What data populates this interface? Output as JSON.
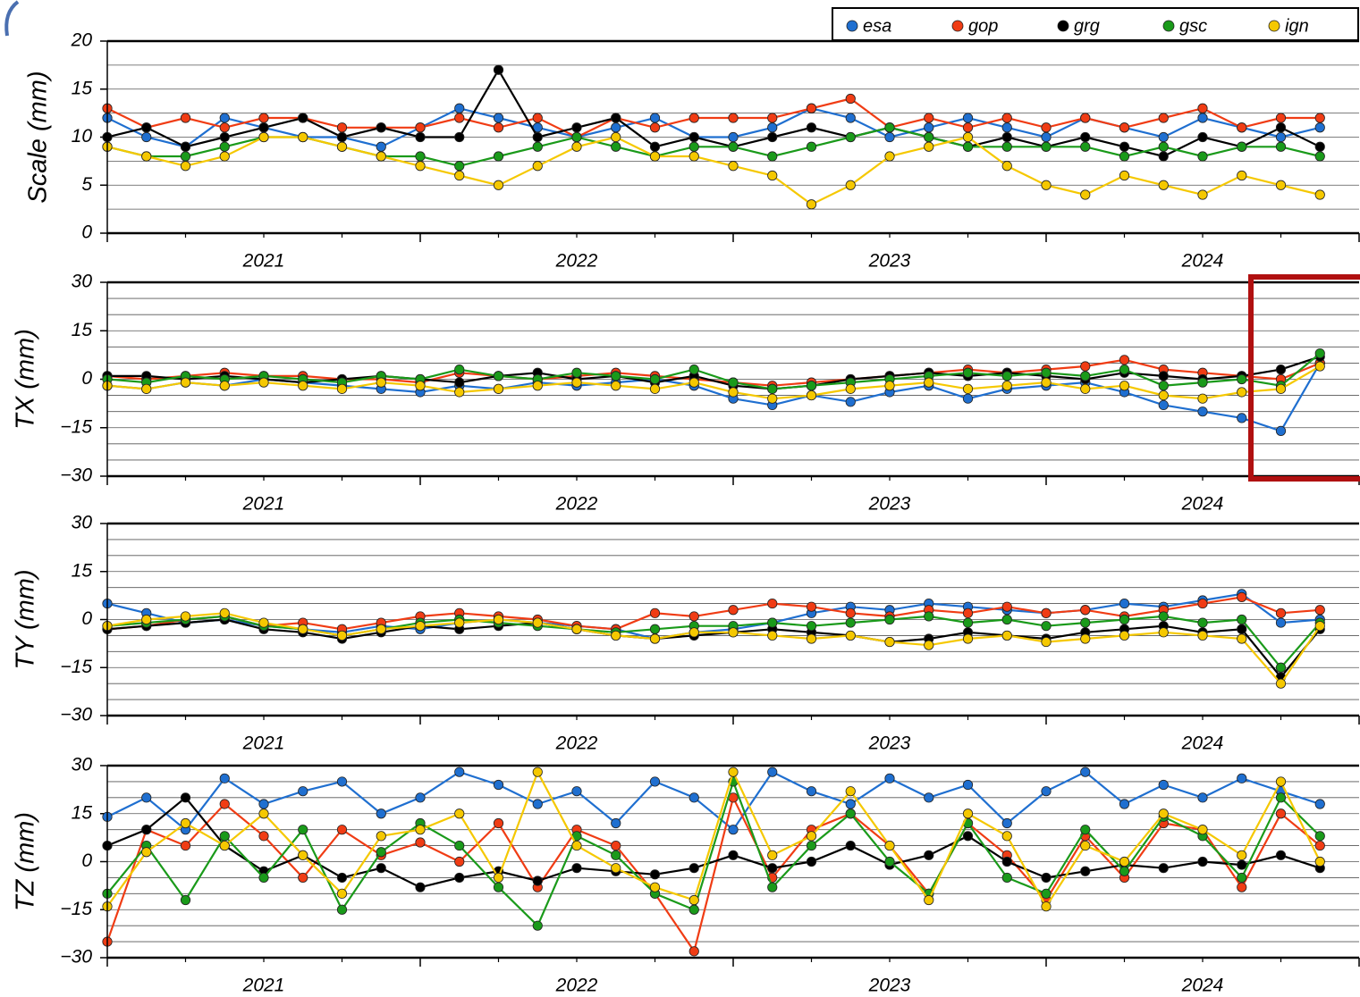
{
  "chart_data": [
    {
      "type": "line",
      "ylabel": "Scale (mm)",
      "legend": "top-right",
      "x": [
        2021,
        2021.125,
        2021.25,
        2021.375,
        2021.5,
        2021.625,
        2021.75,
        2021.875,
        2022,
        2022.125,
        2022.25,
        2022.375,
        2022.5,
        2022.625,
        2022.75,
        2022.875,
        2023,
        2023.125,
        2023.25,
        2023.375,
        2023.5,
        2023.625,
        2023.75,
        2023.875,
        2024,
        2024.125,
        2024.25,
        2024.375,
        2024.5,
        2024.625,
        2024.75,
        2024.875
      ],
      "xlim": [
        2021,
        2025
      ],
      "xticks": [
        {
          "value": 2021.5,
          "label": "2021"
        },
        {
          "value": 2022.5,
          "label": "2022"
        },
        {
          "value": 2023.5,
          "label": "2023"
        },
        {
          "value": 2024.5,
          "label": "2024"
        }
      ],
      "x_major_ticks": [
        2021,
        2022,
        2023,
        2024,
        2025
      ],
      "x_minor_ticks": [
        2021.25,
        2021.5,
        2021.75,
        2022.25,
        2022.5,
        2022.75,
        2023.25,
        2023.5,
        2023.75,
        2024.25,
        2024.5,
        2024.75
      ],
      "ylim": [
        0,
        20
      ],
      "yticks": [
        0,
        5,
        10,
        15,
        20
      ],
      "ygrid": [
        2.5,
        5,
        7.5,
        10,
        12.5,
        15,
        17.5
      ],
      "series": [
        {
          "name": "esa",
          "color": "#1f6fd0",
          "values": [
            12,
            10,
            9,
            12,
            11,
            10,
            10,
            9,
            11,
            13,
            12,
            11,
            10,
            11,
            12,
            10,
            10,
            11,
            13,
            12,
            10,
            11,
            12,
            11,
            10,
            12,
            11,
            10,
            12,
            11,
            10,
            11
          ]
        },
        {
          "name": "gop",
          "color": "#f03c14",
          "values": [
            13,
            11,
            12,
            11,
            12,
            12,
            11,
            11,
            11,
            12,
            11,
            12,
            10,
            12,
            11,
            12,
            12,
            12,
            13,
            14,
            11,
            12,
            11,
            12,
            11,
            12,
            11,
            12,
            13,
            11,
            12,
            12
          ]
        },
        {
          "name": "grg",
          "color": "#000000",
          "values": [
            10,
            11,
            9,
            10,
            11,
            12,
            10,
            11,
            10,
            10,
            17,
            10,
            11,
            12,
            9,
            10,
            9,
            10,
            11,
            10,
            11,
            10,
            9,
            10,
            9,
            10,
            9,
            8,
            10,
            9,
            11,
            9
          ]
        },
        {
          "name": "gsc",
          "color": "#1a9a1a",
          "values": [
            9,
            8,
            8,
            9,
            10,
            10,
            9,
            8,
            8,
            7,
            8,
            9,
            10,
            9,
            8,
            9,
            9,
            8,
            9,
            10,
            11,
            10,
            9,
            9,
            9,
            9,
            8,
            9,
            8,
            9,
            9,
            8
          ]
        },
        {
          "name": "ign",
          "color": "#f5c800",
          "values": [
            9,
            8,
            7,
            8,
            10,
            10,
            9,
            8,
            7,
            6,
            5,
            7,
            9,
            10,
            8,
            8,
            7,
            6,
            3,
            5,
            8,
            9,
            10,
            7,
            5,
            4,
            6,
            5,
            4,
            6,
            5,
            4
          ]
        }
      ]
    },
    {
      "type": "line",
      "ylabel": "TX (mm)",
      "x": [
        2021,
        2021.125,
        2021.25,
        2021.375,
        2021.5,
        2021.625,
        2021.75,
        2021.875,
        2022,
        2022.125,
        2022.25,
        2022.375,
        2022.5,
        2022.625,
        2022.75,
        2022.875,
        2023,
        2023.125,
        2023.25,
        2023.375,
        2023.5,
        2023.625,
        2023.75,
        2023.875,
        2024,
        2024.125,
        2024.25,
        2024.375,
        2024.5,
        2024.625,
        2024.75,
        2024.875
      ],
      "xlim": [
        2021,
        2025
      ],
      "xticks": [
        {
          "value": 2021.5,
          "label": "2021"
        },
        {
          "value": 2022.5,
          "label": "2022"
        },
        {
          "value": 2023.5,
          "label": "2023"
        },
        {
          "value": 2024.5,
          "label": "2024"
        }
      ],
      "x_major_ticks": [
        2021,
        2022,
        2023,
        2024,
        2025
      ],
      "x_minor_ticks": [
        2021.25,
        2021.5,
        2021.75,
        2022.25,
        2022.5,
        2022.75,
        2023.25,
        2023.5,
        2023.75,
        2024.25,
        2024.5,
        2024.75
      ],
      "ylim": [
        -30,
        30
      ],
      "yticks": [
        {
          "value": -30,
          "label": "−30"
        },
        {
          "value": -15,
          "label": "−15"
        },
        0,
        15,
        30
      ],
      "ygrid": [
        -25,
        -20,
        -15,
        -10,
        -5,
        0,
        5,
        10,
        15,
        20,
        25
      ],
      "series": [
        {
          "name": "esa",
          "color": "#1f6fd0",
          "values": [
            -2,
            -3,
            -1,
            -2,
            0,
            -1,
            -2,
            -3,
            -4,
            -2,
            -3,
            -1,
            -2,
            -1,
            0,
            -2,
            -6,
            -8,
            -5,
            -7,
            -4,
            -2,
            -6,
            -3,
            -2,
            -1,
            -4,
            -8,
            -10,
            -12,
            -16,
            5
          ]
        },
        {
          "name": "gop",
          "color": "#f03c14",
          "values": [
            1,
            0,
            1,
            2,
            1,
            1,
            0,
            0,
            -1,
            2,
            1,
            0,
            1,
            2,
            1,
            0,
            -1,
            -2,
            -1,
            0,
            1,
            2,
            3,
            2,
            3,
            4,
            6,
            3,
            2,
            1,
            0,
            5
          ]
        },
        {
          "name": "grg",
          "color": "#000000",
          "values": [
            1,
            1,
            0,
            1,
            0,
            -1,
            0,
            1,
            0,
            -1,
            1,
            2,
            0,
            1,
            -1,
            1,
            -2,
            -3,
            -2,
            0,
            1,
            2,
            1,
            2,
            1,
            0,
            2,
            1,
            0,
            1,
            3,
            7
          ]
        },
        {
          "name": "gsc",
          "color": "#1a9a1a",
          "values": [
            0,
            -1,
            1,
            0,
            1,
            0,
            -1,
            1,
            0,
            3,
            1,
            0,
            2,
            1,
            0,
            3,
            -1,
            -3,
            -2,
            -1,
            0,
            1,
            2,
            1,
            2,
            1,
            3,
            -2,
            -1,
            0,
            -2,
            8
          ]
        },
        {
          "name": "ign",
          "color": "#f5c800",
          "values": [
            -2,
            -3,
            -1,
            -2,
            -1,
            -2,
            -3,
            -1,
            -2,
            -4,
            -3,
            -2,
            -1,
            -2,
            -3,
            -1,
            -4,
            -6,
            -5,
            -3,
            -2,
            -1,
            -3,
            -2,
            -1,
            -3,
            -2,
            -5,
            -6,
            -4,
            -3,
            4
          ]
        }
      ]
    },
    {
      "type": "line",
      "ylabel": "TY (mm)",
      "x": [
        2021,
        2021.125,
        2021.25,
        2021.375,
        2021.5,
        2021.625,
        2021.75,
        2021.875,
        2022,
        2022.125,
        2022.25,
        2022.375,
        2022.5,
        2022.625,
        2022.75,
        2022.875,
        2023,
        2023.125,
        2023.25,
        2023.375,
        2023.5,
        2023.625,
        2023.75,
        2023.875,
        2024,
        2024.125,
        2024.25,
        2024.375,
        2024.5,
        2024.625,
        2024.75,
        2024.875
      ],
      "xlim": [
        2021,
        2025
      ],
      "xticks": [
        {
          "value": 2021.5,
          "label": "2021"
        },
        {
          "value": 2022.5,
          "label": "2022"
        },
        {
          "value": 2023.5,
          "label": "2023"
        },
        {
          "value": 2024.5,
          "label": "2024"
        }
      ],
      "x_major_ticks": [
        2021,
        2022,
        2023,
        2024,
        2025
      ],
      "x_minor_ticks": [
        2021.25,
        2021.5,
        2021.75,
        2022.25,
        2022.5,
        2022.75,
        2023.25,
        2023.5,
        2023.75,
        2024.25,
        2024.5,
        2024.75
      ],
      "ylim": [
        -30,
        30
      ],
      "yticks": [
        {
          "value": -30,
          "label": "−30"
        },
        {
          "value": -15,
          "label": "−15"
        },
        0,
        15,
        30
      ],
      "ygrid": [
        -25,
        -20,
        -15,
        -10,
        -5,
        0,
        5,
        10,
        15,
        20,
        25
      ],
      "series": [
        {
          "name": "esa",
          "color": "#1f6fd0",
          "values": [
            5,
            2,
            -1,
            0,
            -2,
            -3,
            -4,
            -2,
            -3,
            -1,
            0,
            -1,
            -2,
            -3,
            -6,
            -4,
            -3,
            -1,
            2,
            4,
            3,
            5,
            4,
            3,
            2,
            3,
            5,
            4,
            6,
            8,
            -1,
            0
          ]
        },
        {
          "name": "gop",
          "color": "#f03c14",
          "values": [
            -3,
            -2,
            0,
            1,
            -2,
            -1,
            -3,
            -1,
            1,
            2,
            1,
            0,
            -2,
            -3,
            2,
            1,
            3,
            5,
            4,
            2,
            1,
            3,
            2,
            4,
            2,
            3,
            1,
            3,
            5,
            7,
            2,
            3
          ]
        },
        {
          "name": "grg",
          "color": "#000000",
          "values": [
            -3,
            -2,
            -1,
            0,
            -3,
            -4,
            -6,
            -4,
            -2,
            -3,
            -2,
            -1,
            -3,
            -5,
            -6,
            -5,
            -4,
            -3,
            -4,
            -5,
            -7,
            -6,
            -4,
            -5,
            -6,
            -4,
            -3,
            -2,
            -4,
            -3,
            -18,
            -3
          ]
        },
        {
          "name": "gsc",
          "color": "#1a9a1a",
          "values": [
            -2,
            -1,
            0,
            1,
            -2,
            -3,
            -5,
            -3,
            -1,
            0,
            -1,
            -2,
            -3,
            -4,
            -3,
            -2,
            -2,
            -1,
            -2,
            -1,
            0,
            1,
            -1,
            0,
            -2,
            -1,
            0,
            1,
            -1,
            0,
            -15,
            -1
          ]
        },
        {
          "name": "ign",
          "color": "#f5c800",
          "values": [
            -2,
            0,
            1,
            2,
            -1,
            -3,
            -5,
            -3,
            -2,
            -1,
            0,
            -1,
            -3,
            -5,
            -6,
            -4,
            -4,
            -5,
            -6,
            -5,
            -7,
            -8,
            -6,
            -5,
            -7,
            -6,
            -5,
            -4,
            -5,
            -6,
            -20,
            -2
          ]
        }
      ]
    },
    {
      "type": "line",
      "ylabel": "TZ (mm)",
      "x": [
        2021,
        2021.125,
        2021.25,
        2021.375,
        2021.5,
        2021.625,
        2021.75,
        2021.875,
        2022,
        2022.125,
        2022.25,
        2022.375,
        2022.5,
        2022.625,
        2022.75,
        2022.875,
        2023,
        2023.125,
        2023.25,
        2023.375,
        2023.5,
        2023.625,
        2023.75,
        2023.875,
        2024,
        2024.125,
        2024.25,
        2024.375,
        2024.5,
        2024.625,
        2024.75,
        2024.875
      ],
      "xlim": [
        2021,
        2025
      ],
      "xticks": [
        {
          "value": 2021.5,
          "label": "2021"
        },
        {
          "value": 2022.5,
          "label": "2022"
        },
        {
          "value": 2023.5,
          "label": "2023"
        },
        {
          "value": 2024.5,
          "label": "2024"
        }
      ],
      "x_major_ticks": [
        2021,
        2022,
        2023,
        2024,
        2025
      ],
      "x_minor_ticks": [
        2021.25,
        2021.5,
        2021.75,
        2022.25,
        2022.5,
        2022.75,
        2023.25,
        2023.5,
        2023.75,
        2024.25,
        2024.5,
        2024.75
      ],
      "ylim": [
        -30,
        30
      ],
      "yticks": [
        {
          "value": -30,
          "label": "−30"
        },
        {
          "value": -15,
          "label": "−15"
        },
        0,
        15,
        30
      ],
      "ygrid": [
        -25,
        -20,
        -15,
        -10,
        -5,
        0,
        5,
        10,
        15,
        20,
        25
      ],
      "series": [
        {
          "name": "esa",
          "color": "#1f6fd0",
          "values": [
            14,
            20,
            10,
            26,
            18,
            22,
            25,
            15,
            20,
            28,
            24,
            18,
            22,
            12,
            25,
            20,
            10,
            28,
            22,
            18,
            26,
            20,
            24,
            12,
            22,
            28,
            18,
            24,
            20,
            26,
            22,
            18
          ]
        },
        {
          "name": "gop",
          "color": "#f03c14",
          "values": [
            -25,
            10,
            5,
            18,
            8,
            -5,
            10,
            2,
            6,
            0,
            12,
            -8,
            10,
            5,
            -10,
            -28,
            20,
            -5,
            10,
            15,
            5,
            -10,
            12,
            2,
            -12,
            8,
            -5,
            12,
            10,
            -8,
            15,
            5
          ]
        },
        {
          "name": "grg",
          "color": "#000000",
          "values": [
            5,
            10,
            20,
            5,
            -3,
            2,
            -5,
            -2,
            -8,
            -5,
            -3,
            -6,
            -2,
            -3,
            -4,
            -2,
            2,
            -2,
            0,
            5,
            -1,
            2,
            8,
            0,
            -5,
            -3,
            -1,
            -2,
            0,
            -1,
            2,
            -2
          ]
        },
        {
          "name": "gsc",
          "color": "#1a9a1a",
          "values": [
            -10,
            5,
            -12,
            8,
            -5,
            10,
            -15,
            3,
            12,
            5,
            -8,
            -20,
            8,
            2,
            -10,
            -15,
            25,
            -8,
            5,
            15,
            0,
            -10,
            12,
            -5,
            -10,
            10,
            -3,
            14,
            8,
            -5,
            20,
            8
          ]
        },
        {
          "name": "ign",
          "color": "#f5c800",
          "values": [
            -14,
            3,
            12,
            5,
            15,
            2,
            -10,
            8,
            10,
            15,
            -5,
            28,
            5,
            -2,
            -8,
            -12,
            28,
            2,
            8,
            22,
            5,
            -12,
            15,
            8,
            -14,
            5,
            0,
            15,
            10,
            2,
            25,
            0
          ]
        }
      ]
    }
  ]
}
